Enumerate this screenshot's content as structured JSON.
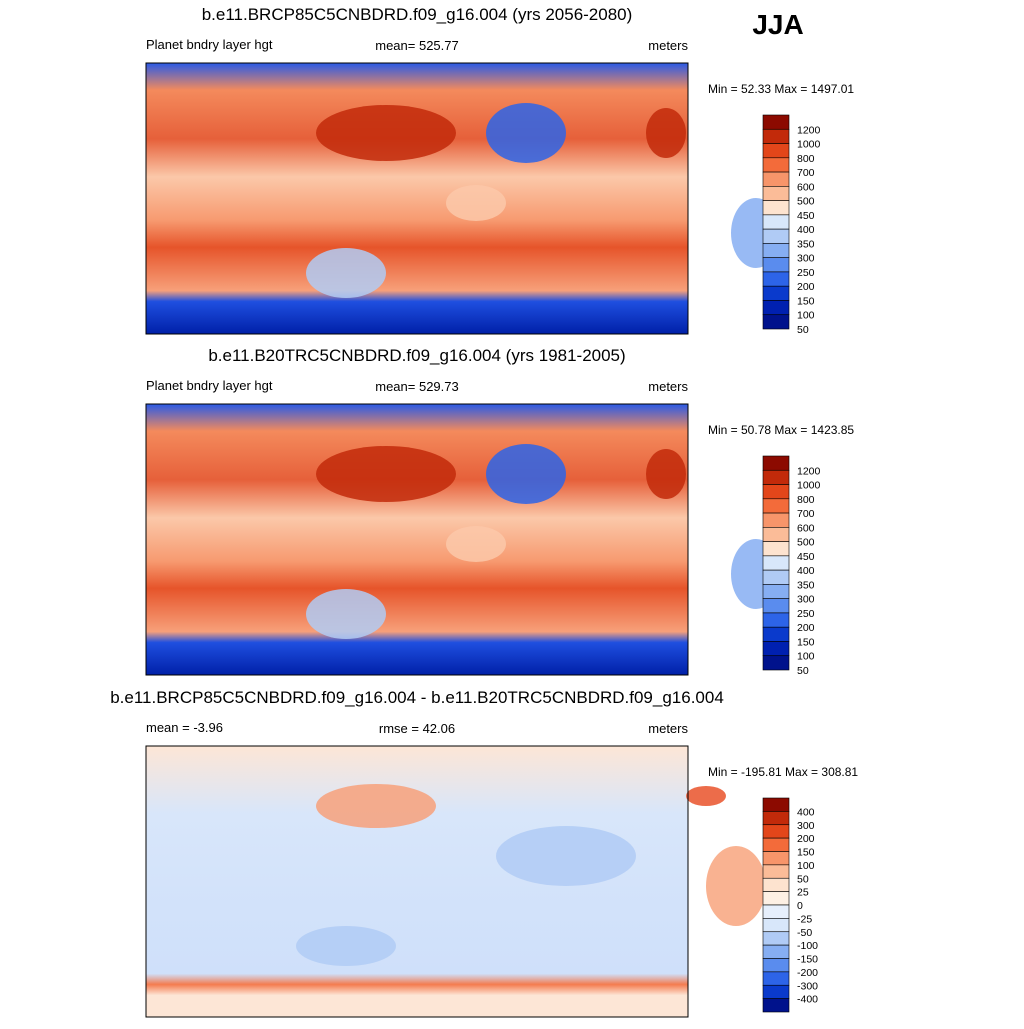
{
  "season": "JJA",
  "panels": [
    {
      "title": "b.e11.BRCP85C5CNBDRD.f09_g16.004 (yrs 2056-2080)",
      "left": "Planet bndry layer hgt",
      "center": "mean= 525.77",
      "right": "meters",
      "minmax": "Min =  52.33 Max = 1497.01",
      "colorbar": {
        "labels": [
          1200,
          1000,
          800,
          700,
          600,
          500,
          450,
          400,
          350,
          300,
          250,
          200,
          150,
          100,
          50
        ],
        "colors": [
          "#8c0a00",
          "#c22a0a",
          "#e3461a",
          "#f36b3a",
          "#f7956a",
          "#fbbc98",
          "#fde3cf",
          "#d8e7fa",
          "#b0cbf5",
          "#86aef2",
          "#5a8cee",
          "#2d64e8",
          "#0a3acc",
          "#0020b0",
          "#00128c"
        ]
      }
    },
    {
      "title": "b.e11.B20TRC5CNBDRD.f09_g16.004 (yrs 1981-2005)",
      "left": "Planet bndry layer hgt",
      "center": "mean= 529.73",
      "right": "meters",
      "minmax": "Min =  50.78 Max = 1423.85",
      "colorbar": {
        "labels": [
          1200,
          1000,
          800,
          700,
          600,
          500,
          450,
          400,
          350,
          300,
          250,
          200,
          150,
          100,
          50
        ],
        "colors": [
          "#8c0a00",
          "#c22a0a",
          "#e3461a",
          "#f36b3a",
          "#f7956a",
          "#fbbc98",
          "#fde3cf",
          "#d8e7fa",
          "#b0cbf5",
          "#86aef2",
          "#5a8cee",
          "#2d64e8",
          "#0a3acc",
          "#0020b0",
          "#00128c"
        ]
      }
    },
    {
      "title": "b.e11.BRCP85C5CNBDRD.f09_g16.004 - b.e11.B20TRC5CNBDRD.f09_g16.004",
      "left": "mean =  -3.96",
      "center": "rmse =  42.06",
      "right": "meters",
      "minmax": "Min = -195.81 Max = 308.81",
      "colorbar": {
        "labels": [
          400,
          300,
          200,
          150,
          100,
          50,
          25,
          0,
          -25,
          -50,
          -100,
          -150,
          -200,
          -300,
          -400
        ],
        "colors": [
          "#8c0a00",
          "#c22a0a",
          "#e3461a",
          "#f36b3a",
          "#f7956a",
          "#fbbc98",
          "#fde3cf",
          "#fdf0e4",
          "#e6effc",
          "#d8e7fa",
          "#b0cbf5",
          "#86aef2",
          "#5a8cee",
          "#2d64e8",
          "#0a3acc",
          "#00128c"
        ]
      }
    }
  ]
}
